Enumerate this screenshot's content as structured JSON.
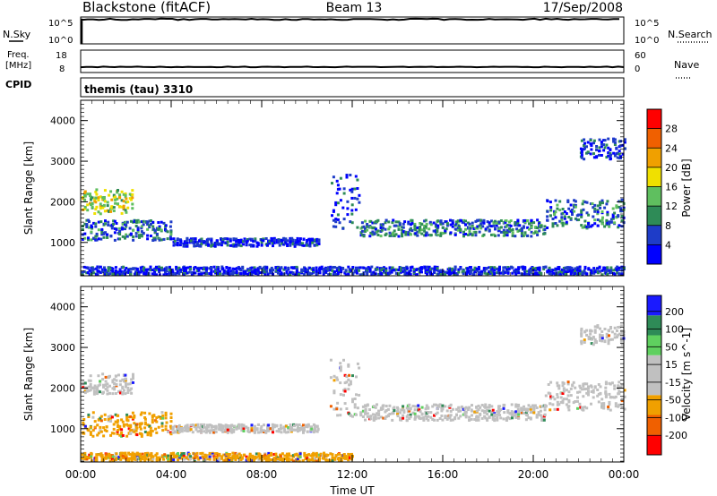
{
  "header": {
    "title": "Blackstone (fitACF)",
    "beam": "Beam 13",
    "date": "17/Sep/2008"
  },
  "status_panels": {
    "nsky_label": "N.Sky",
    "nsearch_label": "N.Search",
    "freq_label_line1": "Freq.",
    "freq_label_line2": "[MHz]",
    "nave_label": "Nave",
    "cpid_label": "CPID",
    "cpid_value": "themis (tau) 3310",
    "nsky_ticks": [
      "10^5",
      "10^0"
    ],
    "nsearch_ticks": [
      "10^5",
      "10^0"
    ],
    "freq_ticks": [
      "18",
      "8"
    ],
    "nave_ticks": [
      "60",
      "0"
    ],
    "nsky_ylim_log10": [
      0,
      5
    ],
    "freq_ylim_mhz": [
      8,
      18
    ],
    "nave_ylim": [
      0,
      60
    ],
    "freq_value_mhz": 10.5,
    "nave_value": 35,
    "nsky_log10_value": 4.7
  },
  "colors": {
    "power": [
      "#0000ff",
      "#1e3cc8",
      "#2e8b57",
      "#5fbf5f",
      "#f0e000",
      "#f0a000",
      "#f06000",
      "#ff0000"
    ],
    "velocity": [
      "#1a1aff",
      "#2e8b57",
      "#5fd05f",
      "#c0c0c0",
      "#c0c0c0",
      "#f0a000",
      "#f06000",
      "#ff0000"
    ],
    "scatter_gray": "#c0c0c0"
  },
  "chart_data": [
    {
      "type": "heatmap",
      "title": "",
      "xlabel": "",
      "ylabel": "Slant Range [km]",
      "xlim_hours": [
        0,
        24
      ],
      "ylim_km": [
        180,
        4500
      ],
      "x_ticks": [
        "00:00",
        "04:00",
        "08:00",
        "12:00",
        "16:00",
        "20:00",
        "00:00"
      ],
      "y_ticks": [
        1000,
        2000,
        3000,
        4000
      ],
      "colorbar": {
        "label": "Power [dB]",
        "ticks": [
          4,
          8,
          12,
          16,
          20,
          24,
          28
        ],
        "range": [
          0,
          30
        ]
      },
      "regions": [
        {
          "t_start": 0.0,
          "t_end": 2.3,
          "r_center": 2000,
          "r_width": 600,
          "level": "high"
        },
        {
          "t_start": 0.0,
          "t_end": 4.0,
          "r_center": 1300,
          "r_width": 500,
          "level": "mid"
        },
        {
          "t_start": 4.0,
          "t_end": 10.5,
          "r_center": 1000,
          "r_width": 200,
          "level": "low"
        },
        {
          "t_start": 11.0,
          "t_end": 12.3,
          "r_center": 2000,
          "r_width": 1400,
          "level": "low"
        },
        {
          "t_start": 12.3,
          "t_end": 20.5,
          "r_center": 1350,
          "r_width": 400,
          "level": "mid"
        },
        {
          "t_start": 20.5,
          "t_end": 24.0,
          "r_center": 1700,
          "r_width": 700,
          "level": "mid"
        },
        {
          "t_start": 22.0,
          "t_end": 24.0,
          "r_center": 3300,
          "r_width": 500,
          "level": "low"
        },
        {
          "t_start": 0.0,
          "t_end": 24.0,
          "r_center": 300,
          "r_width": 200,
          "level": "low"
        }
      ]
    },
    {
      "type": "heatmap",
      "title": "",
      "xlabel": "Time UT",
      "ylabel": "Slant Range [km]",
      "xlim_hours": [
        0,
        24
      ],
      "ylim_km": [
        180,
        4500
      ],
      "x_ticks": [
        "00:00",
        "04:00",
        "08:00",
        "12:00",
        "16:00",
        "20:00",
        "00:00"
      ],
      "y_ticks": [
        1000,
        2000,
        3000,
        4000
      ],
      "colorbar": {
        "label": "Velocity [m s^-1]",
        "ticks": [
          200,
          100,
          50,
          15,
          -15,
          -50,
          -100,
          -200
        ],
        "range": [
          -250,
          250
        ]
      },
      "regions": [
        {
          "t_start": 0.0,
          "t_end": 2.3,
          "r_center": 2100,
          "r_width": 500,
          "level": "gray"
        },
        {
          "t_start": 0.0,
          "t_end": 4.0,
          "r_center": 1100,
          "r_width": 600,
          "level": "negative"
        },
        {
          "t_start": 4.0,
          "t_end": 10.5,
          "r_center": 1000,
          "r_width": 200,
          "level": "gray"
        },
        {
          "t_start": 11.0,
          "t_end": 12.3,
          "r_center": 2000,
          "r_width": 1400,
          "level": "gray"
        },
        {
          "t_start": 12.3,
          "t_end": 20.5,
          "r_center": 1400,
          "r_width": 400,
          "level": "gray"
        },
        {
          "t_start": 20.5,
          "t_end": 24.0,
          "r_center": 1800,
          "r_width": 700,
          "level": "gray"
        },
        {
          "t_start": 22.0,
          "t_end": 24.0,
          "r_center": 3300,
          "r_width": 500,
          "level": "gray"
        },
        {
          "t_start": 0.0,
          "t_end": 12.0,
          "r_center": 300,
          "r_width": 200,
          "level": "negative"
        }
      ]
    }
  ]
}
